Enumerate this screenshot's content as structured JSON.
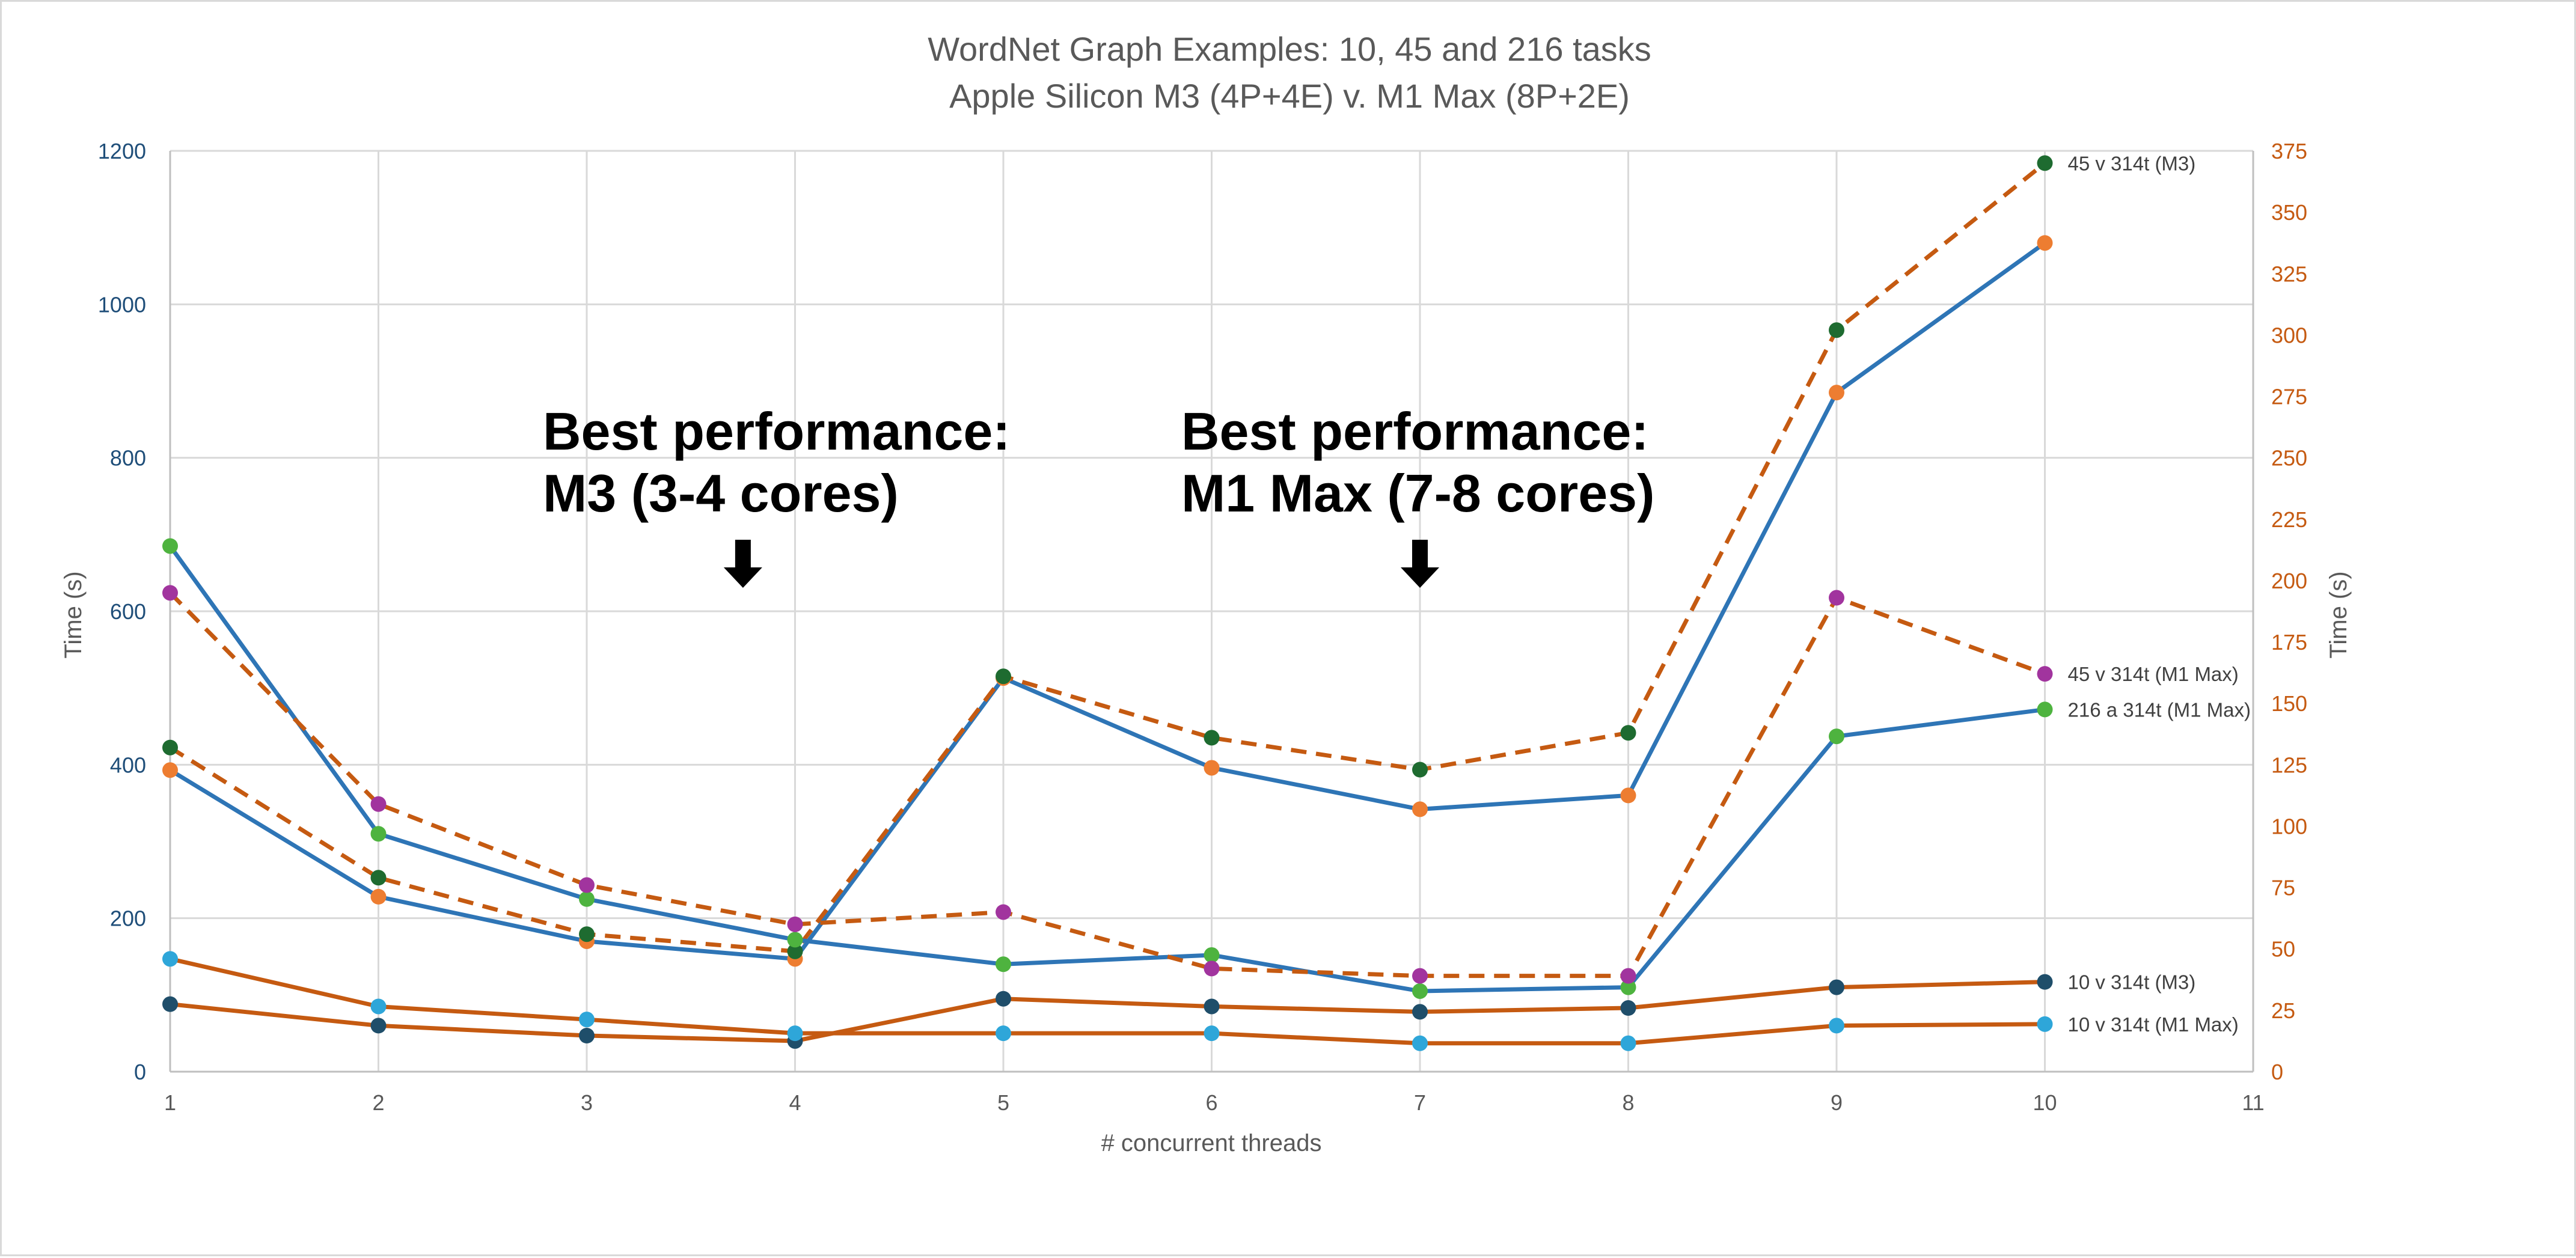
{
  "chart_data": {
    "type": "line",
    "title": "WordNet Graph Examples: 10, 45 and 216 tasks",
    "subtitle": "Apple Silicon M3 (4P+4E) v. M1 Max (8P+2E)",
    "xlabel": "# concurrent threads",
    "ylabel_left": "Time (s)",
    "ylabel_right": "Time (s)",
    "x_ticks": [
      "1",
      "2",
      "3",
      "4",
      "5",
      "6",
      "7",
      "8",
      "9",
      "10",
      "11"
    ],
    "y_left_ticks": [
      "0",
      "200",
      "400",
      "600",
      "800",
      "1000",
      "1200"
    ],
    "y_right_ticks": [
      "0",
      "25",
      "50",
      "75",
      "100",
      "125",
      "150",
      "175",
      "200",
      "225",
      "250",
      "275",
      "300",
      "325",
      "350",
      "375"
    ],
    "xlim": [
      1,
      11
    ],
    "ylim_left": [
      0,
      1200
    ],
    "ylim_right": [
      0,
      375
    ],
    "grid": true,
    "series": [
      {
        "axis": "left",
        "style": "solid",
        "color": "#2e75b6",
        "marker": "#ed7d31",
        "x": [
          1,
          2,
          3,
          4,
          5,
          6,
          7,
          8,
          9,
          10
        ],
        "values": [
          393,
          228,
          170,
          147,
          513,
          396,
          342,
          360,
          885,
          1080
        ]
      },
      {
        "axis": "right",
        "style": "dashed",
        "color": "#c55a11",
        "marker": "#1e6b30",
        "x": [
          1,
          2,
          3,
          4,
          5,
          6,
          7,
          8,
          9,
          10
        ],
        "values": [
          132,
          79,
          56,
          49,
          161,
          136,
          123,
          138,
          302,
          370
        ]
      },
      {
        "axis": "left",
        "style": "solid",
        "color": "#2e75b6",
        "marker": "#4eb33f",
        "x": [
          1,
          2,
          3,
          4,
          5,
          6,
          7,
          8,
          9,
          10
        ],
        "values": [
          685,
          310,
          225,
          172,
          140,
          152,
          105,
          110,
          437,
          472
        ]
      },
      {
        "axis": "right",
        "style": "dashed",
        "color": "#c55a11",
        "marker": "#a1349e",
        "x": [
          1,
          2,
          3,
          4,
          5,
          6,
          7,
          8,
          9,
          10
        ],
        "values": [
          195,
          109,
          76,
          60,
          65,
          42,
          39,
          39,
          193,
          162
        ]
      },
      {
        "axis": "left",
        "style": "solid",
        "color": "#c55a11",
        "marker": "#1f4e6a",
        "x": [
          1,
          2,
          3,
          4,
          5,
          6,
          7,
          8,
          9,
          10
        ],
        "values": [
          88,
          60,
          47,
          40,
          95,
          85,
          78,
          83,
          110,
          117
        ]
      },
      {
        "axis": "left",
        "style": "solid",
        "color": "#c55a11",
        "marker": "#2ea6d9",
        "x": [
          1,
          2,
          3,
          4,
          5,
          6,
          7,
          8,
          9,
          10
        ],
        "values": [
          147,
          85,
          68,
          50,
          50,
          50,
          37,
          37,
          60,
          62
        ]
      }
    ],
    "labels": [
      {
        "text": "45 v 314t (M3)",
        "series_index": 1
      },
      {
        "text": "45 v 314t (M1 Max)",
        "series_index": 3
      },
      {
        "text": "216 a 314t (M1 Max)",
        "series_index": 2
      },
      {
        "text": "10 v 314t (M3)",
        "series_index": 4
      },
      {
        "text": "10 v 314t (M1 Max)",
        "series_index": 5
      }
    ],
    "annotations": [
      {
        "line1": "Best performance:",
        "line2": "M3 (3-4 cores)",
        "arrow_x": 3.75
      },
      {
        "line1": "Best performance:",
        "line2": "M1 Max (7-8 cores)",
        "arrow_x": 7.0
      }
    ]
  }
}
